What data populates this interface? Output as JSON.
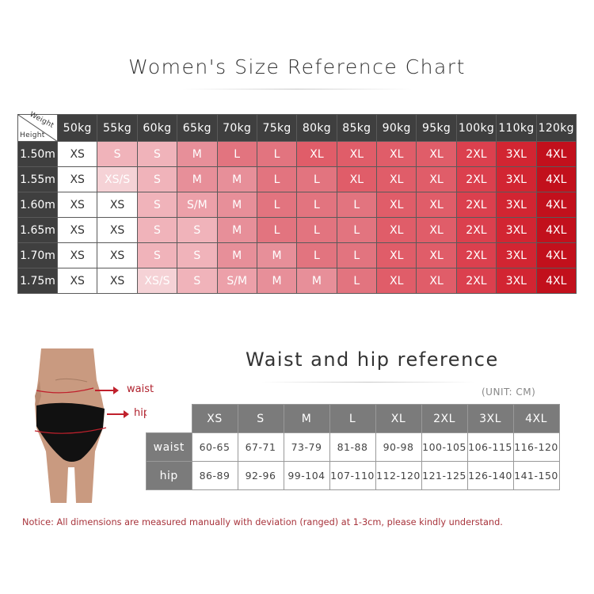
{
  "title": "Women's Size Reference Chart",
  "size_chart": {
    "corner_weight": "Weight",
    "corner_height": "Height",
    "weights": [
      "50kg",
      "55kg",
      "60kg",
      "65kg",
      "70kg",
      "75kg",
      "80kg",
      "85kg",
      "90kg",
      "95kg",
      "100kg",
      "110kg",
      "120kg"
    ],
    "rows": [
      {
        "height": "1.50m",
        "sizes": [
          "XS",
          "S",
          "S",
          "M",
          "L",
          "L",
          "XL",
          "XL",
          "XL",
          "XL",
          "2XL",
          "3XL",
          "4XL"
        ]
      },
      {
        "height": "1.55m",
        "sizes": [
          "XS",
          "XS/S",
          "S",
          "M",
          "M",
          "L",
          "L",
          "XL",
          "XL",
          "XL",
          "2XL",
          "3XL",
          "4XL"
        ]
      },
      {
        "height": "1.60m",
        "sizes": [
          "XS",
          "XS",
          "S",
          "S/M",
          "M",
          "L",
          "L",
          "L",
          "XL",
          "XL",
          "2XL",
          "3XL",
          "4XL"
        ]
      },
      {
        "height": "1.65m",
        "sizes": [
          "XS",
          "XS",
          "S",
          "S",
          "M",
          "L",
          "L",
          "L",
          "XL",
          "XL",
          "2XL",
          "3XL",
          "4XL"
        ]
      },
      {
        "height": "1.70m",
        "sizes": [
          "XS",
          "XS",
          "S",
          "S",
          "M",
          "M",
          "L",
          "L",
          "XL",
          "XL",
          "2XL",
          "3XL",
          "4XL"
        ]
      },
      {
        "height": "1.75m",
        "sizes": [
          "XS",
          "XS",
          "XS/S",
          "S",
          "S/M",
          "M",
          "M",
          "L",
          "XL",
          "XL",
          "2XL",
          "3XL",
          "4XL"
        ]
      }
    ],
    "size_colors": {
      "XS": "#ffffff",
      "XS/S": "#f5d2d6",
      "S": "#f0b3ba",
      "S/M": "#eca0a9",
      "M": "#e78f99",
      "L": "#e2747f",
      "XL": "#e05d69",
      "2XL": "#db404e",
      "3XL": "#d22532",
      "4XL": "#c2101c"
    }
  },
  "waist_hip": {
    "title": "Waist and hip reference",
    "unit": "(UNIT: CM)",
    "sizes": [
      "XS",
      "S",
      "M",
      "L",
      "XL",
      "2XL",
      "3XL",
      "4XL"
    ],
    "rows": [
      {
        "label": "waist",
        "values": [
          "60-65",
          "67-71",
          "73-79",
          "81-88",
          "90-98",
          "100-105",
          "106-115",
          "116-120"
        ]
      },
      {
        "label": "hip",
        "values": [
          "86-89",
          "92-96",
          "99-104",
          "107-110",
          "112-120",
          "121-125",
          "126-140",
          "141-150"
        ]
      }
    ],
    "figure_labels": {
      "waist": "waist",
      "hip": "hip"
    }
  },
  "notice": "Notice: All dimensions are measured manually with deviation (ranged) at 1-3cm, please kindly understand."
}
